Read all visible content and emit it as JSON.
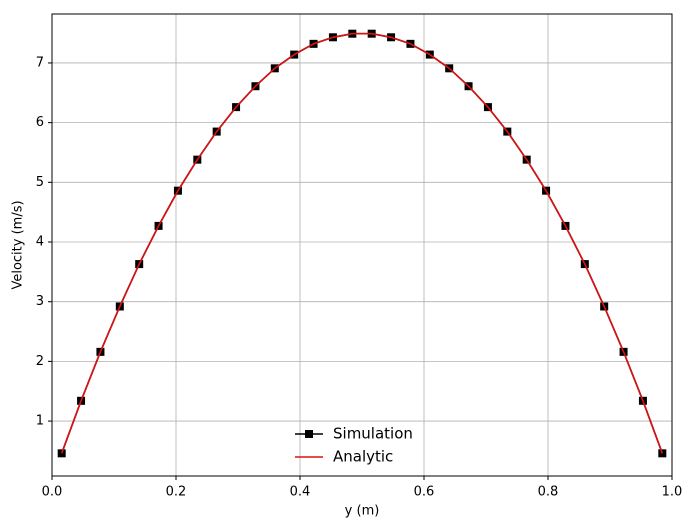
{
  "chart_data": {
    "type": "line",
    "xlabel": "y (m)",
    "ylabel": "Velocity (m/s)",
    "x": [
      0.015625,
      0.046875,
      0.078125,
      0.109375,
      0.140625,
      0.171875,
      0.203125,
      0.234375,
      0.265625,
      0.296875,
      0.328125,
      0.359375,
      0.390625,
      0.421875,
      0.453125,
      0.484375,
      0.515625,
      0.546875,
      0.578125,
      0.609375,
      0.640625,
      0.671875,
      0.703125,
      0.734375,
      0.765625,
      0.796875,
      0.828125,
      0.859375,
      0.890625,
      0.921875,
      0.953125,
      0.984375
    ],
    "series": [
      {
        "name": "Simulation",
        "color": "#000000",
        "marker": "square",
        "values": [
          0.46,
          1.34,
          2.16,
          2.92,
          3.63,
          4.27,
          4.86,
          5.38,
          5.85,
          6.26,
          6.61,
          6.91,
          7.14,
          7.32,
          7.43,
          7.49,
          7.49,
          7.43,
          7.32,
          7.14,
          6.91,
          6.61,
          6.26,
          5.85,
          5.38,
          4.86,
          4.27,
          3.63,
          2.92,
          2.16,
          1.34,
          0.46
        ]
      },
      {
        "name": "Analytic",
        "color": "#dd1111",
        "values": [
          0.46,
          1.34,
          2.16,
          2.92,
          3.63,
          4.27,
          4.86,
          5.38,
          5.85,
          6.26,
          6.61,
          6.91,
          7.14,
          7.32,
          7.43,
          7.49,
          7.49,
          7.43,
          7.32,
          7.14,
          6.91,
          6.61,
          6.26,
          5.85,
          5.38,
          4.86,
          4.27,
          3.63,
          2.92,
          2.16,
          1.34,
          0.46
        ]
      }
    ],
    "xlim": [
      0,
      1
    ],
    "xticks": [
      {
        "value": 0,
        "label": "0.0"
      },
      0.2,
      0.4,
      0.6,
      0.8,
      {
        "value": 1,
        "label": "1.0"
      }
    ],
    "ylim": [
      0.08,
      7.82
    ],
    "yticks": [
      1,
      2,
      3,
      4,
      5,
      6,
      7
    ],
    "grid": true,
    "legend": "lower center"
  }
}
